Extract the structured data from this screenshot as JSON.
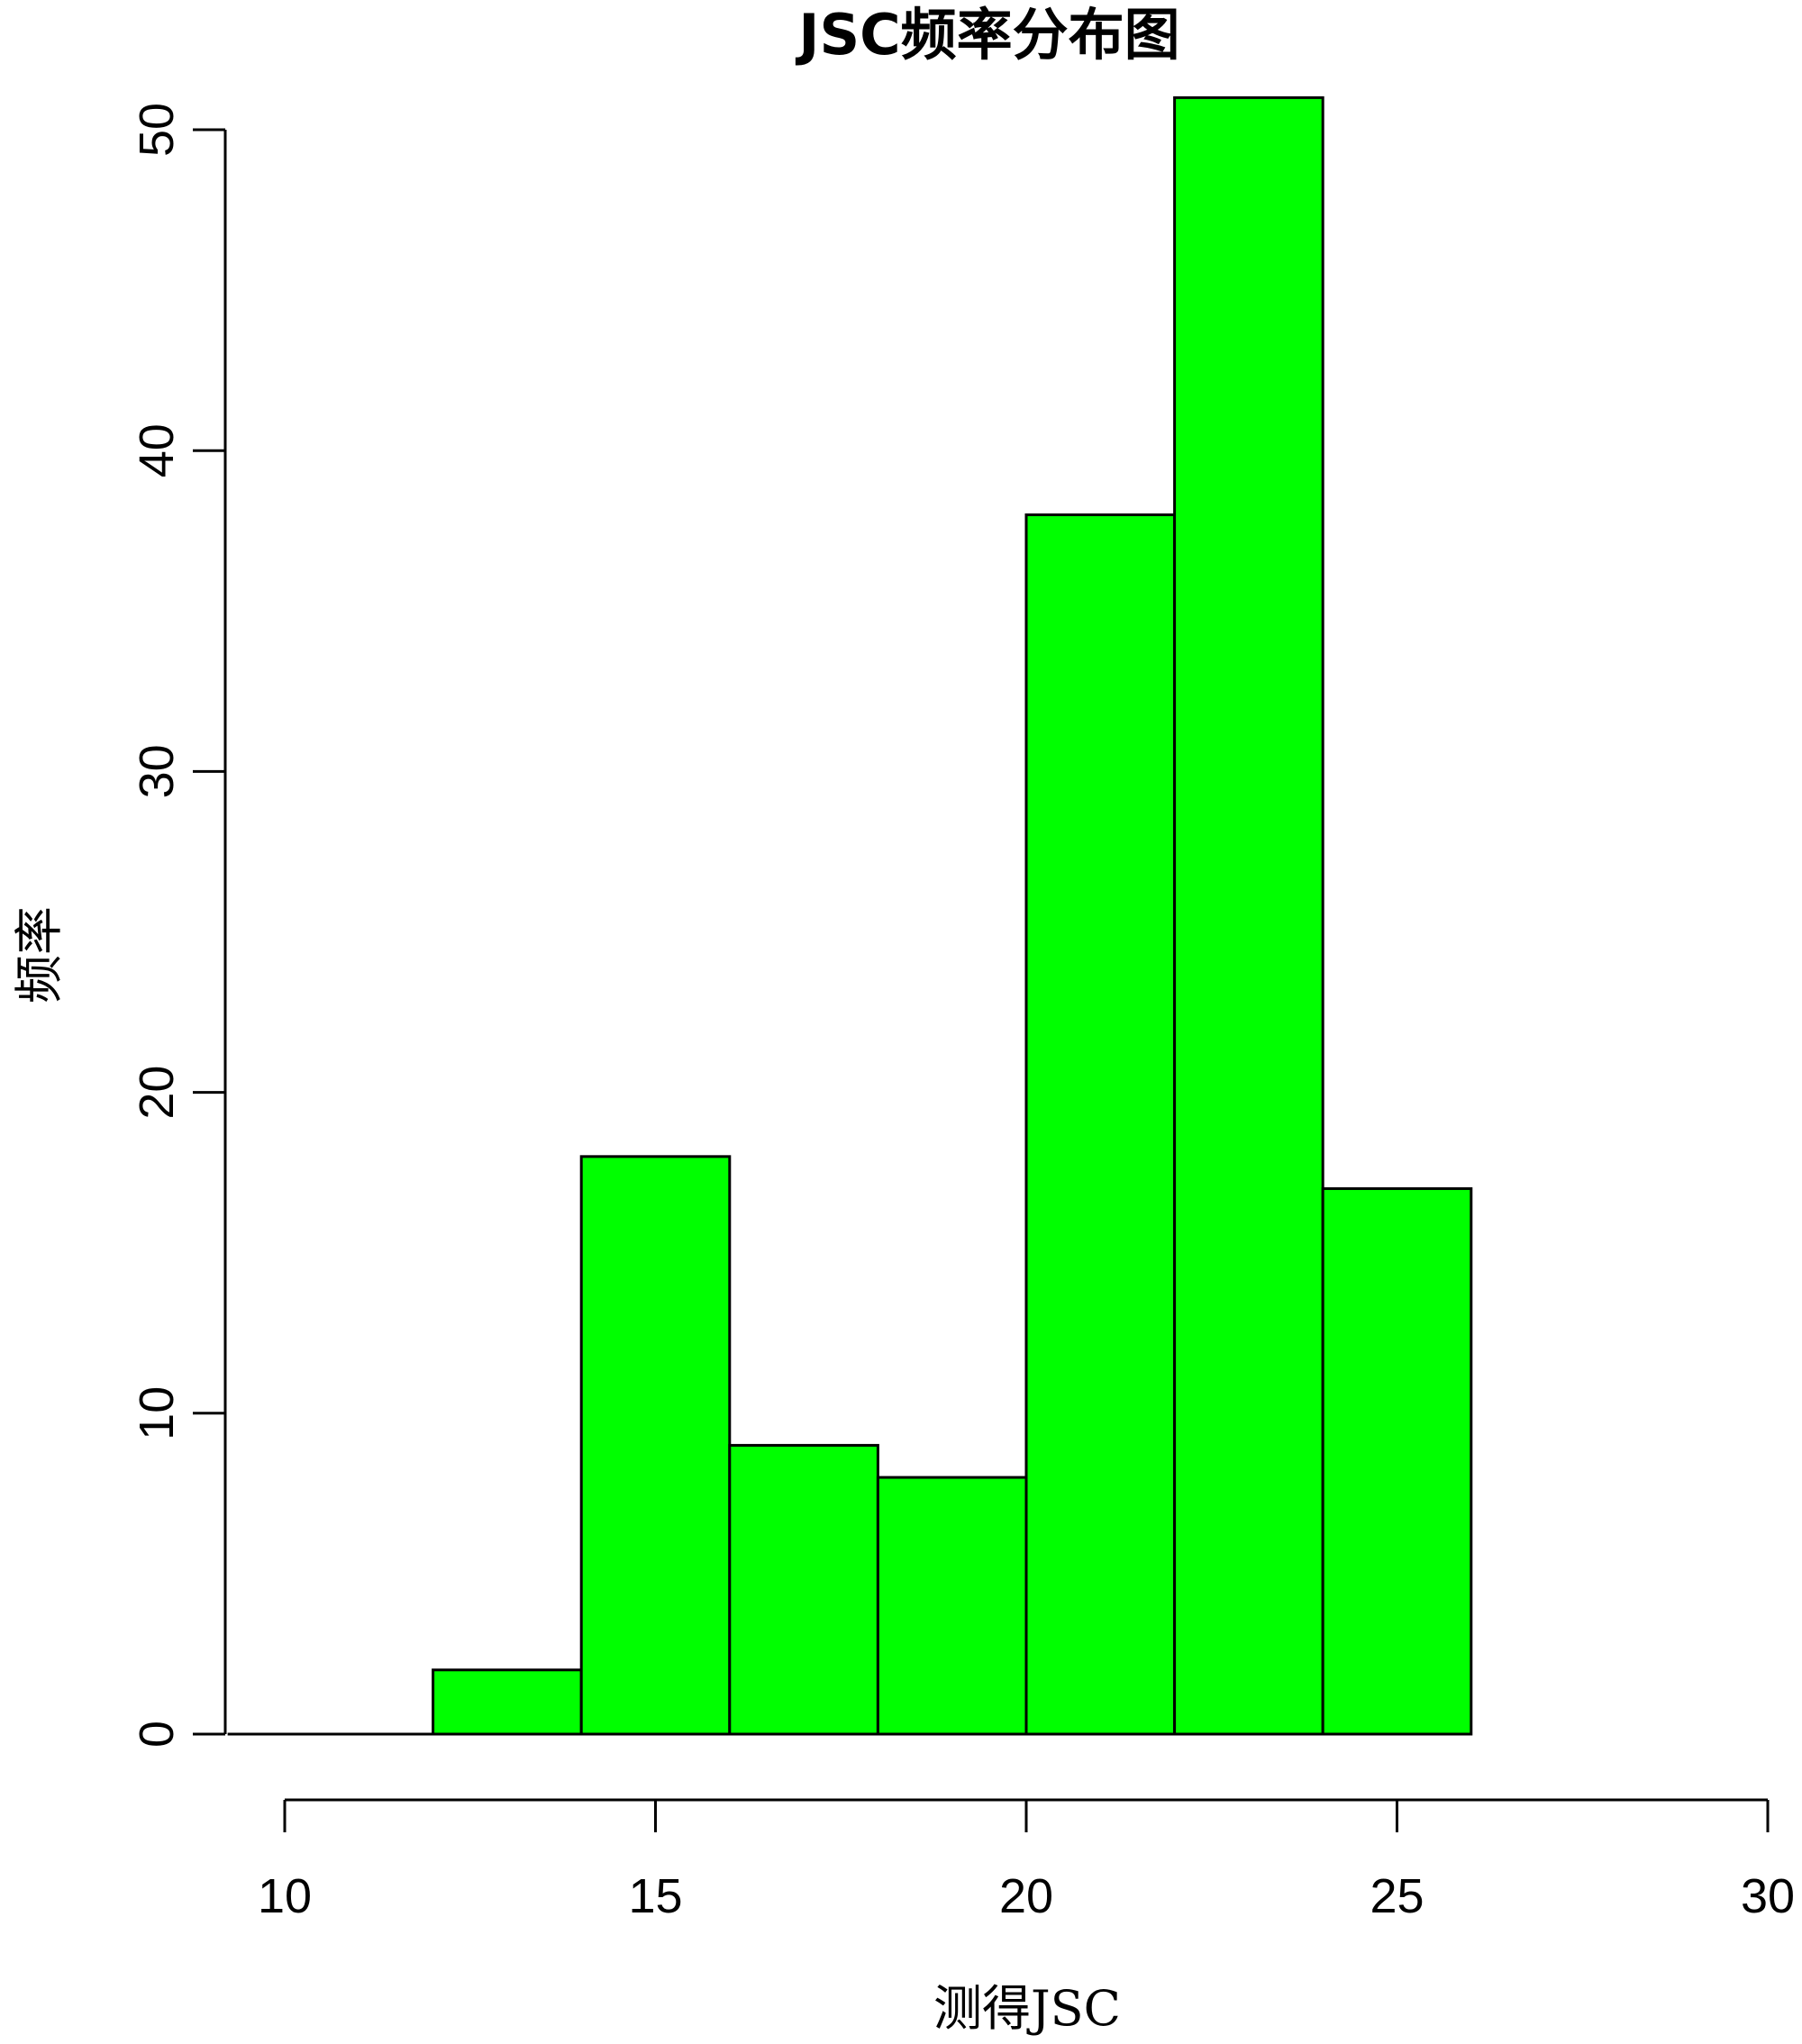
{
  "chart_data": {
    "type": "bar",
    "title": "JSC频率分布图",
    "xlabel": "测得JSC",
    "ylabel": "频率",
    "bins": [
      {
        "from": 12,
        "to": 14,
        "count": 2
      },
      {
        "from": 14,
        "to": 16,
        "count": 18
      },
      {
        "from": 16,
        "to": 18,
        "count": 9
      },
      {
        "from": 18,
        "to": 20,
        "count": 8
      },
      {
        "from": 20,
        "to": 22,
        "count": 38
      },
      {
        "from": 22,
        "to": 24,
        "count": 51
      },
      {
        "from": 24,
        "to": 26,
        "count": 17
      }
    ],
    "xlim": [
      10,
      30
    ],
    "ylim": [
      0,
      50
    ],
    "xticks": [
      "10",
      "15",
      "20",
      "25",
      "30"
    ],
    "yticks": [
      "0",
      "10",
      "20",
      "30",
      "40",
      "50"
    ],
    "grid": false,
    "colors": {
      "bar": "#00ff00",
      "edge": "#000000"
    }
  }
}
